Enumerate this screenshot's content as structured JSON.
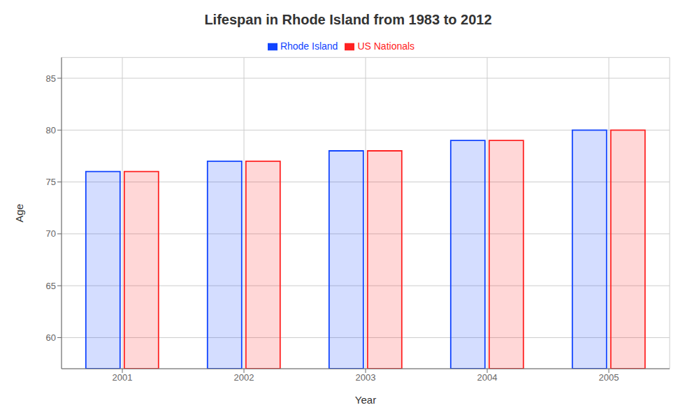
{
  "chart_data": {
    "type": "bar",
    "title": "Lifespan in Rhode Island from 1983 to 2012",
    "xlabel": "Year",
    "ylabel": "Age",
    "categories": [
      "2001",
      "2002",
      "2003",
      "2004",
      "2005"
    ],
    "series": [
      {
        "name": "Rhode Island",
        "color": "#1144ff",
        "values": [
          76,
          77,
          78,
          79,
          80
        ]
      },
      {
        "name": "US Nationals",
        "color": "#ff2222",
        "values": [
          76,
          77,
          78,
          79,
          80
        ]
      }
    ],
    "ylim": [
      57,
      87
    ],
    "yticks": [
      60,
      65,
      70,
      75,
      80,
      85
    ],
    "grid": true,
    "legend": "top"
  }
}
